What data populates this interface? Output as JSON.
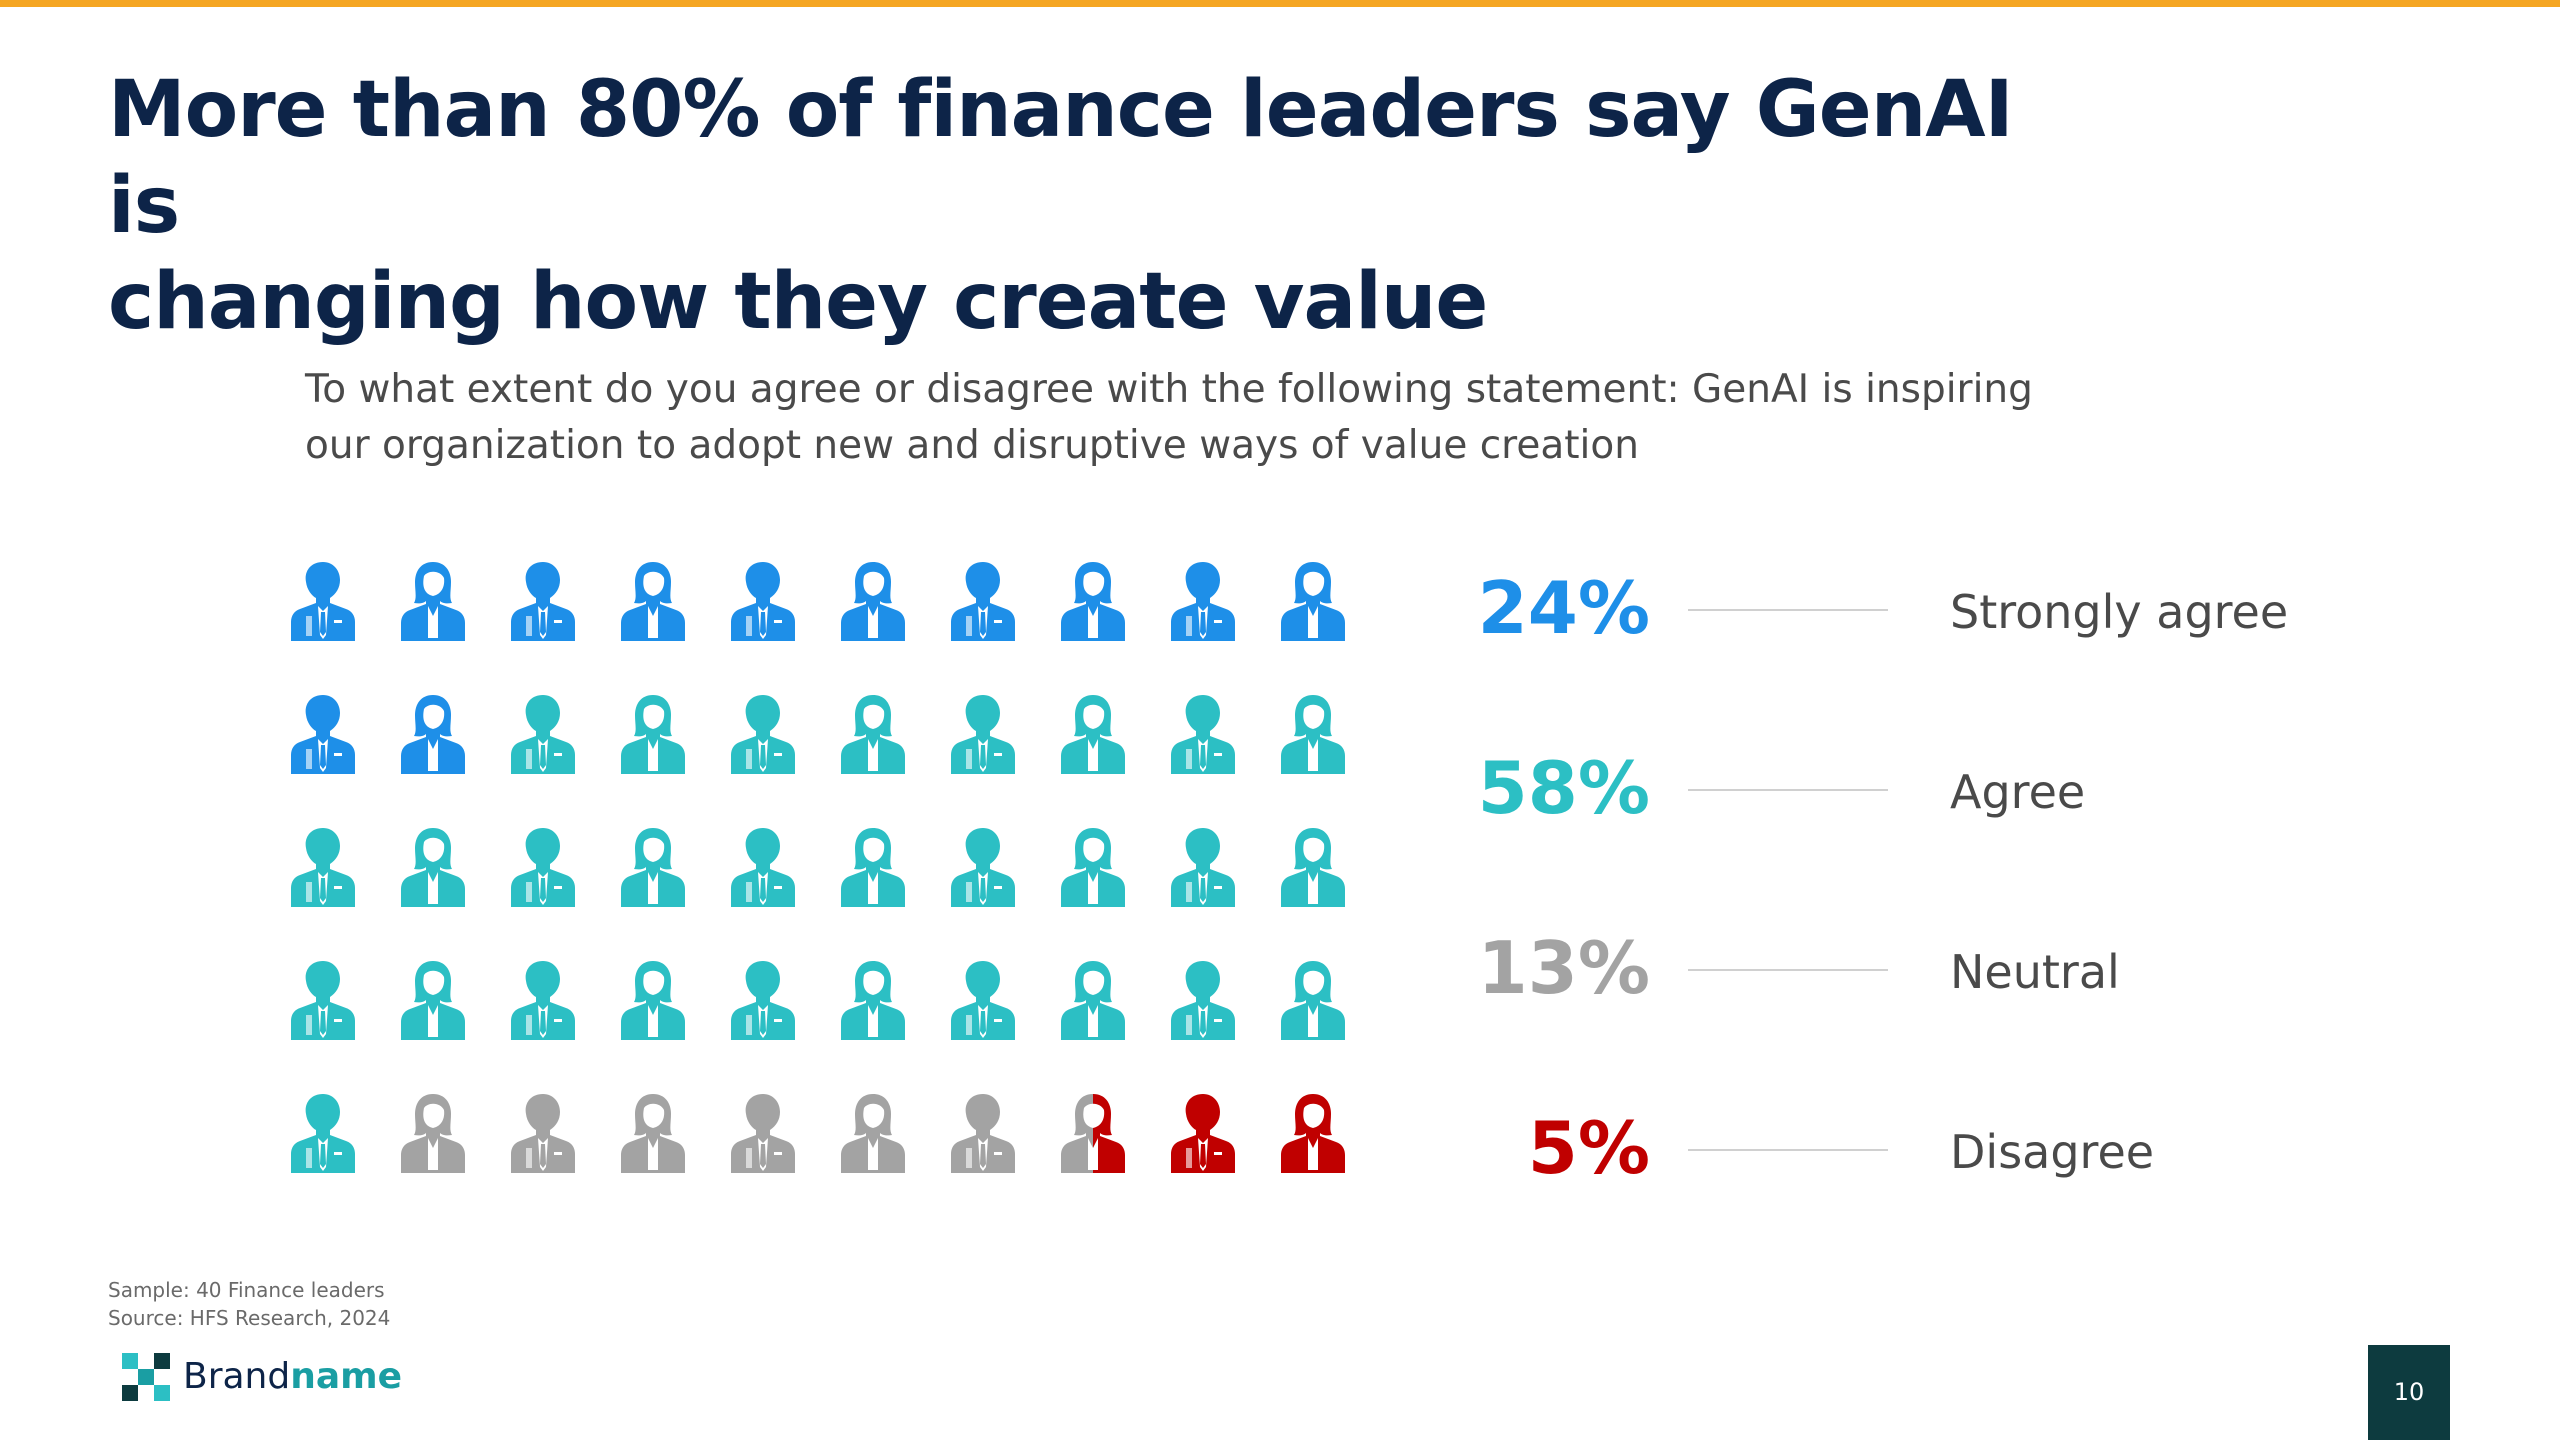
{
  "slide": {
    "title_line1": "More than 80% of finance leaders say GenAI is",
    "title_line2": "changing how they create value",
    "question_line1": "To what extent do you agree or disagree with the following statement: GenAI is inspiring",
    "question_line2": "our organization to adopt new and disruptive ways of value creation",
    "sample": "Sample: 40 Finance leaders",
    "source": "Source: HFS Research, 2024",
    "brand_light": "Brand",
    "brand_bold": "name",
    "page_number": "10"
  },
  "colors": {
    "strongly_agree": "#1e8fe8",
    "agree": "#2cbfc4",
    "neutral": "#a3a3a3",
    "disagree": "#c00000",
    "title": "#0d2448",
    "accent_bar": "#f5a623"
  },
  "chart_data": {
    "type": "pictograph",
    "title": "To what extent do you agree or disagree with the following statement: GenAI is inspiring our organization to adopt new and disruptive ways of value creation",
    "total_icons": 50,
    "rows": 5,
    "columns": 10,
    "categories": [
      "Strongly agree",
      "Agree",
      "Neutral",
      "Disagree"
    ],
    "percent_labels": [
      "24%",
      "58%",
      "13%",
      "5%"
    ],
    "values": [
      24,
      58,
      13,
      5
    ],
    "icon_counts": [
      12,
      29,
      6.5,
      2.5
    ],
    "category_colors": [
      "#1e8fe8",
      "#2cbfc4",
      "#a3a3a3",
      "#c00000"
    ]
  }
}
